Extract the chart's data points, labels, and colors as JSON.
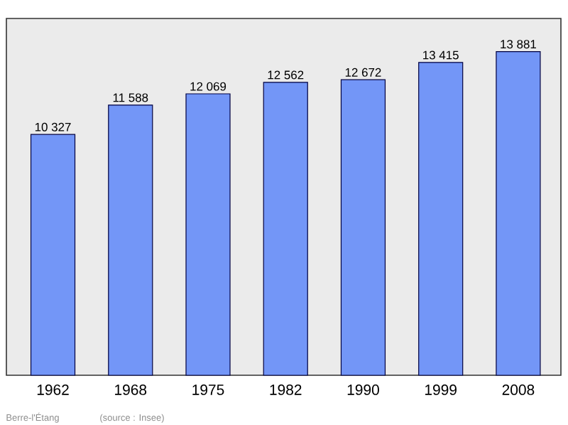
{
  "chart_data": {
    "type": "bar",
    "categories": [
      "1962",
      "1968",
      "1975",
      "1982",
      "1990",
      "1999",
      "2008"
    ],
    "values": [
      10327,
      11588,
      12069,
      12562,
      12672,
      13415,
      13881
    ],
    "value_labels": [
      "10 327",
      "11 588",
      "12 069",
      "12 562",
      "12 672",
      "13 415",
      "13 881"
    ],
    "color": "#7396f7",
    "ylim": [
      0,
      15300
    ],
    "annotations": [
      "Berre-l'Étang",
      "(source : Insee)"
    ]
  }
}
